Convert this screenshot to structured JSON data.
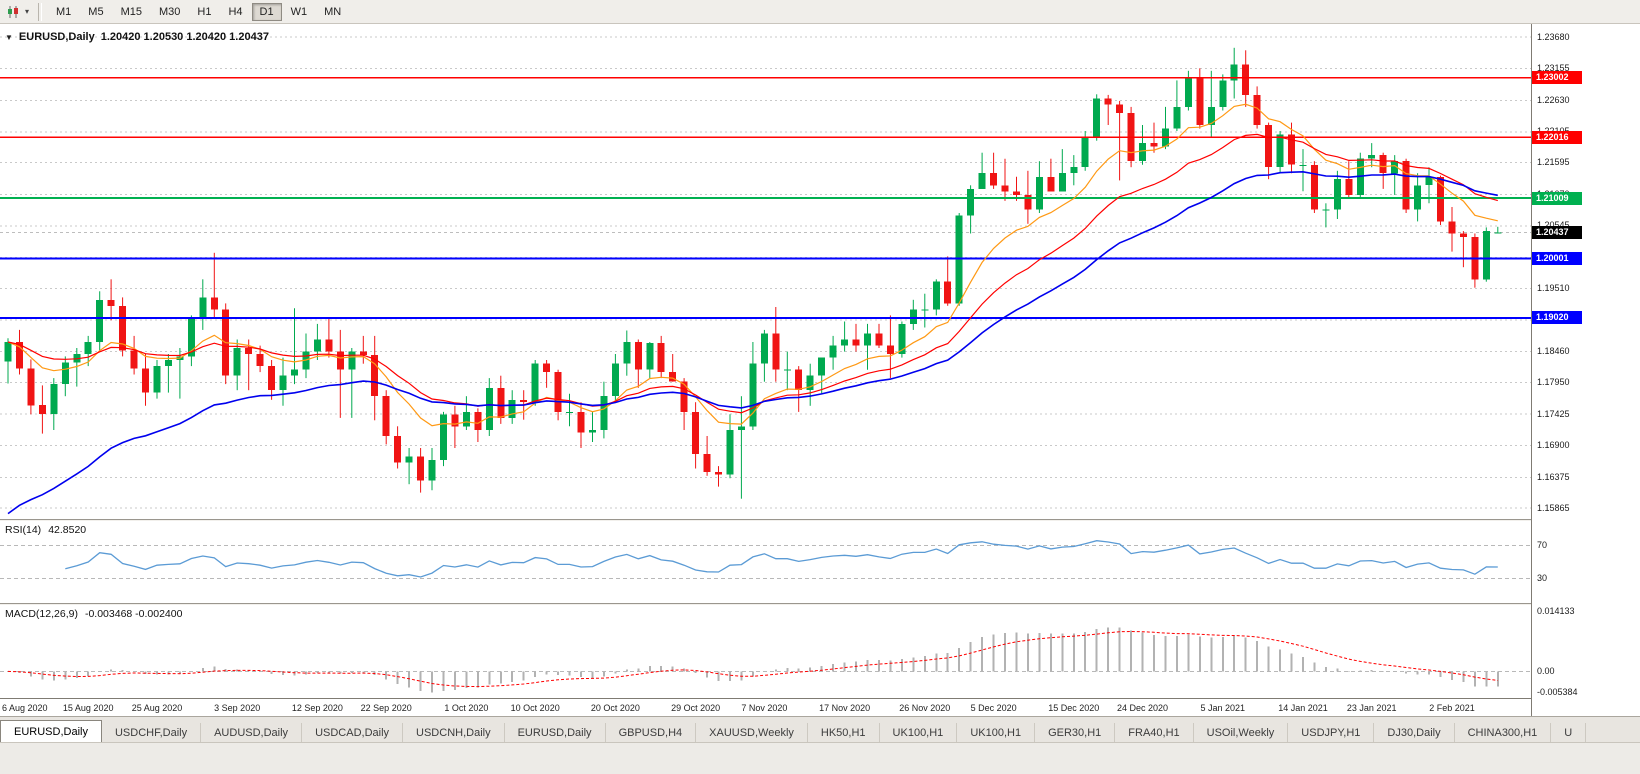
{
  "colors": {
    "bull": "#00a94f",
    "bear": "#f01414",
    "ma_fast": "#ff9914",
    "ma_mid": "#ff0000",
    "ma_slow": "#0000ee",
    "rsi_line": "#5b9bd5",
    "macd_hist": "#b2b2b2",
    "macd_signal": "#ff0000",
    "grid": "#c9c9c9",
    "axis_border": "#7f7b73"
  },
  "icons": {
    "chart_type": "candlestick-chart-icon",
    "chart_type_dropdown": "chevron-down-icon",
    "title_caret": "dropdown-triangle-icon"
  },
  "toolbar": {
    "timeframes": [
      "M1",
      "M5",
      "M15",
      "M30",
      "H1",
      "H4",
      "D1",
      "W1",
      "MN"
    ],
    "active": "D1"
  },
  "chart": {
    "symbol_label": "EURUSD,Daily",
    "ohlc": "1.20420 1.20530 1.20420 1.20437",
    "current_price": "1.20437",
    "price_axis": [
      "1.23680",
      "1.23155",
      "1.22630",
      "1.22105",
      "1.21595",
      "1.21070",
      "1.20545",
      "1.20020",
      "1.19510",
      "1.18985",
      "1.18460",
      "1.17950",
      "1.17425",
      "1.16900",
      "1.16375",
      "1.15865"
    ],
    "hlines": [
      {
        "price": 1.23002,
        "label": "1.23002",
        "color": "#ff0000",
        "width": 1.6
      },
      {
        "price": 1.22016,
        "label": "1.22016",
        "color": "#ff0000",
        "width": 1.6
      },
      {
        "price": 1.21009,
        "label": "1.21009",
        "color": "#00b050",
        "width": 2
      },
      {
        "price": 1.20001,
        "label": "1.20001",
        "color": "#0000ff",
        "width": 2
      },
      {
        "price": 1.1902,
        "label": "1.19020",
        "color": "#0000ff",
        "width": 2
      }
    ]
  },
  "rsi_panel": {
    "name": "RSI(14)",
    "value": "42.8520",
    "upper": "70",
    "lower": "30"
  },
  "macd_panel": {
    "name": "MACD(12,26,9)",
    "values": "-0.003468 -0.002400",
    "max": "0.014133",
    "zero": "0.00",
    "min": "-0.005384"
  },
  "chart_data": {
    "type": "candlestick",
    "symbol": "EURUSD",
    "period": "Daily",
    "price_range": [
      1.15865,
      1.2368
    ],
    "date_ticks": [
      [
        0,
        "6 Aug 2020"
      ],
      [
        7,
        "15 Aug 2020"
      ],
      [
        13,
        "25 Aug 2020"
      ],
      [
        20,
        "3 Sep 2020"
      ],
      [
        27,
        "12 Sep 2020"
      ],
      [
        33,
        "22 Sep 2020"
      ],
      [
        40,
        "1 Oct 2020"
      ],
      [
        46,
        "10 Oct 2020"
      ],
      [
        53,
        "20 Oct 2020"
      ],
      [
        60,
        "29 Oct 2020"
      ],
      [
        66,
        "7 Nov 2020"
      ],
      [
        73,
        "17 Nov 2020"
      ],
      [
        80,
        "26 Nov 2020"
      ],
      [
        86,
        "5 Dec 2020"
      ],
      [
        93,
        "15 Dec 2020"
      ],
      [
        99,
        "24 Dec 2020"
      ],
      [
        106,
        "5 Jan 2021"
      ],
      [
        113,
        "14 Jan 2021"
      ],
      [
        119,
        "23 Jan 2021"
      ],
      [
        126,
        "2 Feb 2021"
      ]
    ],
    "candles_ohlc": [
      [
        1.183,
        1.1868,
        1.1793,
        1.1862
      ],
      [
        1.1862,
        1.1882,
        1.1808,
        1.1818
      ],
      [
        1.1818,
        1.1833,
        1.1742,
        1.1757
      ],
      [
        1.1757,
        1.179,
        1.171,
        1.1742
      ],
      [
        1.1742,
        1.1802,
        1.1716,
        1.1792
      ],
      [
        1.1792,
        1.1838,
        1.1772,
        1.1828
      ],
      [
        1.1828,
        1.1852,
        1.1788,
        1.1842
      ],
      [
        1.1842,
        1.1872,
        1.1822,
        1.1862
      ],
      [
        1.1862,
        1.1946,
        1.1848,
        1.1932
      ],
      [
        1.1932,
        1.1966,
        1.1898,
        1.1922
      ],
      [
        1.1922,
        1.1936,
        1.1838,
        1.1848
      ],
      [
        1.1848,
        1.1872,
        1.1808,
        1.1818
      ],
      [
        1.1818,
        1.1842,
        1.1756,
        1.1778
      ],
      [
        1.1778,
        1.1832,
        1.1768,
        1.1822
      ],
      [
        1.1822,
        1.1842,
        1.1778,
        1.1832
      ],
      [
        1.1832,
        1.1852,
        1.1768,
        1.1838
      ],
      [
        1.1838,
        1.1906,
        1.1822,
        1.1902
      ],
      [
        1.1902,
        1.1966,
        1.1882,
        1.1936
      ],
      [
        1.1936,
        1.201,
        1.1902,
        1.1916
      ],
      [
        1.1916,
        1.1926,
        1.1792,
        1.1806
      ],
      [
        1.1806,
        1.1866,
        1.1782,
        1.1852
      ],
      [
        1.1852,
        1.1866,
        1.1782,
        1.1842
      ],
      [
        1.1842,
        1.1856,
        1.1812,
        1.1822
      ],
      [
        1.1822,
        1.1832,
        1.1766,
        1.1782
      ],
      [
        1.1782,
        1.1836,
        1.1756,
        1.1806
      ],
      [
        1.1806,
        1.1918,
        1.1792,
        1.1816
      ],
      [
        1.1816,
        1.1876,
        1.1802,
        1.1846
      ],
      [
        1.1846,
        1.1892,
        1.1832,
        1.1866
      ],
      [
        1.1866,
        1.1902,
        1.1836,
        1.1846
      ],
      [
        1.1846,
        1.1882,
        1.1736,
        1.1816
      ],
      [
        1.1816,
        1.1852,
        1.1736,
        1.1846
      ],
      [
        1.1846,
        1.1872,
        1.1826,
        1.184
      ],
      [
        1.184,
        1.1872,
        1.1732,
        1.1772
      ],
      [
        1.1772,
        1.1782,
        1.1692,
        1.1706
      ],
      [
        1.1706,
        1.1722,
        1.1652,
        1.1662
      ],
      [
        1.1662,
        1.1686,
        1.1626,
        1.1672
      ],
      [
        1.1672,
        1.1686,
        1.1612,
        1.1632
      ],
      [
        1.1632,
        1.1686,
        1.1616,
        1.1666
      ],
      [
        1.1666,
        1.1746,
        1.1656,
        1.1742
      ],
      [
        1.1742,
        1.1756,
        1.1686,
        1.1722
      ],
      [
        1.1722,
        1.1772,
        1.1716,
        1.1746
      ],
      [
        1.1746,
        1.1752,
        1.1696,
        1.1716
      ],
      [
        1.1716,
        1.1802,
        1.1706,
        1.1786
      ],
      [
        1.1786,
        1.1806,
        1.1726,
        1.1736
      ],
      [
        1.1736,
        1.1782,
        1.1726,
        1.1766
      ],
      [
        1.1766,
        1.1782,
        1.1733,
        1.1762
      ],
      [
        1.1762,
        1.1832,
        1.1756,
        1.1826
      ],
      [
        1.1826,
        1.1832,
        1.1786,
        1.1812
      ],
      [
        1.1812,
        1.1816,
        1.1732,
        1.1746
      ],
      [
        1.1746,
        1.1776,
        1.1722,
        1.1746
      ],
      [
        1.1746,
        1.1762,
        1.1686,
        1.1712
      ],
      [
        1.1712,
        1.1746,
        1.1696,
        1.1716
      ],
      [
        1.1716,
        1.1796,
        1.1702,
        1.1772
      ],
      [
        1.1772,
        1.1842,
        1.1762,
        1.1826
      ],
      [
        1.1826,
        1.1881,
        1.1806,
        1.1862
      ],
      [
        1.1862,
        1.1866,
        1.1786,
        1.1816
      ],
      [
        1.1816,
        1.1862,
        1.1802,
        1.186
      ],
      [
        1.186,
        1.1872,
        1.1802,
        1.1812
      ],
      [
        1.1812,
        1.1842,
        1.1796,
        1.1796
      ],
      [
        1.1796,
        1.1802,
        1.1716,
        1.1746
      ],
      [
        1.1746,
        1.1762,
        1.1652,
        1.1676
      ],
      [
        1.1676,
        1.1706,
        1.164,
        1.1646
      ],
      [
        1.1646,
        1.1656,
        1.1622,
        1.1642
      ],
      [
        1.1642,
        1.1742,
        1.1636,
        1.1716
      ],
      [
        1.1716,
        1.1772,
        1.1602,
        1.1722
      ],
      [
        1.1722,
        1.1862,
        1.1716,
        1.1826
      ],
      [
        1.1826,
        1.1882,
        1.1796,
        1.1876
      ],
      [
        1.1876,
        1.192,
        1.1796,
        1.1816
      ],
      [
        1.1816,
        1.1846,
        1.1782,
        1.1816
      ],
      [
        1.1816,
        1.1822,
        1.1746,
        1.1782
      ],
      [
        1.1782,
        1.1826,
        1.1756,
        1.1806
      ],
      [
        1.1806,
        1.1836,
        1.1776,
        1.1836
      ],
      [
        1.1836,
        1.1872,
        1.1816,
        1.1856
      ],
      [
        1.1856,
        1.1896,
        1.1846,
        1.1866
      ],
      [
        1.1866,
        1.1892,
        1.1846,
        1.1856
      ],
      [
        1.1856,
        1.1892,
        1.1816,
        1.1876
      ],
      [
        1.1876,
        1.1892,
        1.1852,
        1.1856
      ],
      [
        1.1856,
        1.1906,
        1.1802,
        1.1842
      ],
      [
        1.1842,
        1.1896,
        1.1836,
        1.1892
      ],
      [
        1.1892,
        1.1932,
        1.1882,
        1.1916
      ],
      [
        1.1916,
        1.1942,
        1.1886,
        1.1916
      ],
      [
        1.1916,
        1.1966,
        1.1906,
        1.1962
      ],
      [
        1.1962,
        1.2004,
        1.1922,
        1.1926
      ],
      [
        1.1926,
        1.2076,
        1.1922,
        1.2072
      ],
      [
        1.2072,
        1.2122,
        1.2042,
        1.2116
      ],
      [
        1.2116,
        1.2176,
        1.2116,
        1.2142
      ],
      [
        1.2142,
        1.2176,
        1.2116,
        1.2122
      ],
      [
        1.2122,
        1.2166,
        1.2096,
        1.2112
      ],
      [
        1.2112,
        1.2136,
        1.2096,
        1.2106
      ],
      [
        1.2106,
        1.2146,
        1.2058,
        1.2082
      ],
      [
        1.2082,
        1.2162,
        1.2076,
        1.2136
      ],
      [
        1.2136,
        1.2166,
        1.2112,
        1.2112
      ],
      [
        1.2112,
        1.2182,
        1.2112,
        1.2142
      ],
      [
        1.2142,
        1.2172,
        1.2122,
        1.2152
      ],
      [
        1.2152,
        1.2212,
        1.2146,
        1.2202
      ],
      [
        1.2202,
        1.2273,
        1.2196,
        1.2266
      ],
      [
        1.2266,
        1.2272,
        1.2222,
        1.2256
      ],
      [
        1.2256,
        1.2262,
        1.213,
        1.2242
      ],
      [
        1.2242,
        1.2252,
        1.2152,
        1.2162
      ],
      [
        1.2162,
        1.2222,
        1.2156,
        1.2192
      ],
      [
        1.2192,
        1.2226,
        1.2176,
        1.2186
      ],
      [
        1.2186,
        1.2252,
        1.2182,
        1.2216
      ],
      [
        1.2216,
        1.2296,
        1.2212,
        1.2252
      ],
      [
        1.2252,
        1.2312,
        1.2246,
        1.2302
      ],
      [
        1.2302,
        1.2316,
        1.2216,
        1.2222
      ],
      [
        1.2222,
        1.2312,
        1.2202,
        1.2252
      ],
      [
        1.2252,
        1.2306,
        1.2246,
        1.2296
      ],
      [
        1.2296,
        1.235,
        1.2266,
        1.2322
      ],
      [
        1.2322,
        1.2346,
        1.2252,
        1.2272
      ],
      [
        1.2272,
        1.2286,
        1.2216,
        1.2222
      ],
      [
        1.2222,
        1.2226,
        1.2132,
        1.2152
      ],
      [
        1.2152,
        1.2212,
        1.2142,
        1.2206
      ],
      [
        1.2206,
        1.2226,
        1.2142,
        1.2156
      ],
      [
        1.2156,
        1.2182,
        1.2112,
        1.2156
      ],
      [
        1.2156,
        1.2162,
        1.2076,
        1.2082
      ],
      [
        1.2082,
        1.2092,
        1.2052,
        1.2082
      ],
      [
        1.2082,
        1.2146,
        1.2066,
        1.2132
      ],
      [
        1.2132,
        1.2162,
        1.2102,
        1.2106
      ],
      [
        1.2106,
        1.2176,
        1.2102,
        1.2166
      ],
      [
        1.2166,
        1.2192,
        1.2152,
        1.2172
      ],
      [
        1.2172,
        1.2176,
        1.2116,
        1.2142
      ],
      [
        1.2142,
        1.2172,
        1.2106,
        1.2162
      ],
      [
        1.2162,
        1.2166,
        1.2076,
        1.2082
      ],
      [
        1.2082,
        1.2142,
        1.2062,
        1.2122
      ],
      [
        1.2122,
        1.2152,
        1.2092,
        1.2136
      ],
      [
        1.2136,
        1.2138,
        1.2056,
        1.2062
      ],
      [
        1.2062,
        1.2086,
        1.2012,
        1.2042
      ],
      [
        1.2042,
        1.2046,
        1.1986,
        1.2036
      ],
      [
        1.2036,
        1.2042,
        1.1952,
        1.1966
      ],
      [
        1.1966,
        1.2052,
        1.1962,
        1.2046
      ],
      [
        1.2042,
        1.2053,
        1.2042,
        1.20437
      ]
    ],
    "indicators": {
      "moving_averages": [
        {
          "name": "fast",
          "method": "ema",
          "period": 10,
          "color_key": "ma_fast"
        },
        {
          "name": "mid",
          "method": "ema",
          "period": 20,
          "color_key": "ma_mid"
        },
        {
          "name": "slow",
          "method": "ema",
          "period": 34,
          "seed": 1.156,
          "color_key": "ma_slow"
        }
      ],
      "rsi": {
        "period": 14,
        "levels": [
          70,
          30
        ],
        "last_value_label": "42.8520"
      },
      "macd": {
        "fast": 12,
        "slow": 26,
        "signal": 9,
        "scale_max": 0.014133,
        "scale_min": -0.005384
      }
    }
  },
  "tabs": [
    "EURUSD,Daily",
    "USDCHF,Daily",
    "AUDUSD,Daily",
    "USDCAD,Daily",
    "USDCNH,Daily",
    "EURUSD,Daily",
    "GBPUSD,H4",
    "XAUUSD,Weekly",
    "HK50,H1",
    "UK100,H1",
    "UK100,H1",
    "GER30,H1",
    "FRA40,H1",
    "USOil,Weekly",
    "USDJPY,H1",
    "DJ30,Daily",
    "CHINA300,H1",
    "U"
  ],
  "active_tab_index": 0
}
